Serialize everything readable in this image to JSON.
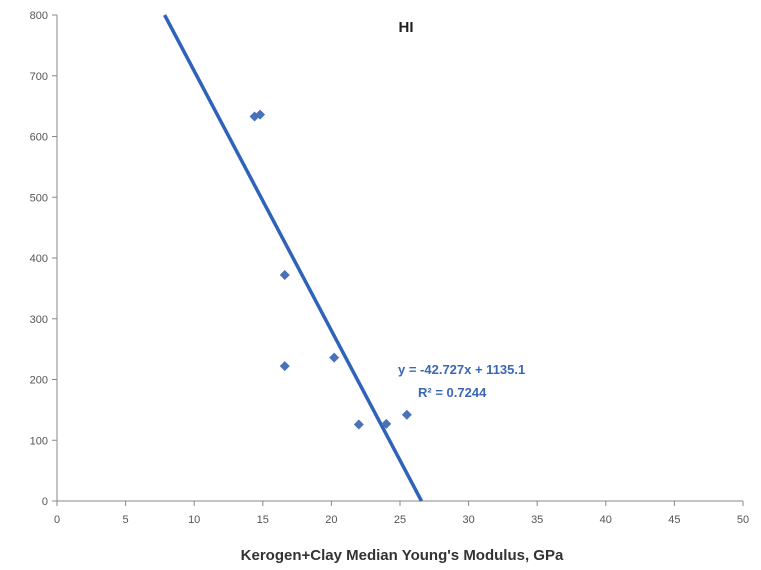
{
  "chart_data": {
    "type": "scatter",
    "title": "HI",
    "xlabel": "Kerogen+Clay Median Young's Modulus, GPa",
    "ylabel": "",
    "xlim": [
      0,
      50
    ],
    "ylim": [
      0,
      800
    ],
    "x_ticks": [
      "0",
      "5",
      "10",
      "15",
      "20",
      "25",
      "30",
      "35",
      "40",
      "45",
      "50"
    ],
    "y_ticks": [
      "0",
      "100",
      "200",
      "300",
      "400",
      "500",
      "600",
      "700",
      "800"
    ],
    "grid": false,
    "legend": "none",
    "series": [
      {
        "points": [
          {
            "x": 14.4,
            "y": 633
          },
          {
            "x": 14.8,
            "y": 636
          },
          {
            "x": 16.6,
            "y": 372
          },
          {
            "x": 16.6,
            "y": 222
          },
          {
            "x": 20.2,
            "y": 236
          },
          {
            "x": 22.0,
            "y": 126
          },
          {
            "x": 24.0,
            "y": 127
          },
          {
            "x": 25.5,
            "y": 142
          }
        ]
      }
    ],
    "trendline": {
      "slope": -42.727,
      "intercept": 1135.1,
      "equation": "y = -42.727x + 1135.1",
      "r_squared": "R² = 0.7244"
    },
    "colors": {
      "marker": "#4a72b8",
      "trendline": "#2f63b9",
      "axis": "#888888",
      "label": "#3b66b6"
    }
  }
}
